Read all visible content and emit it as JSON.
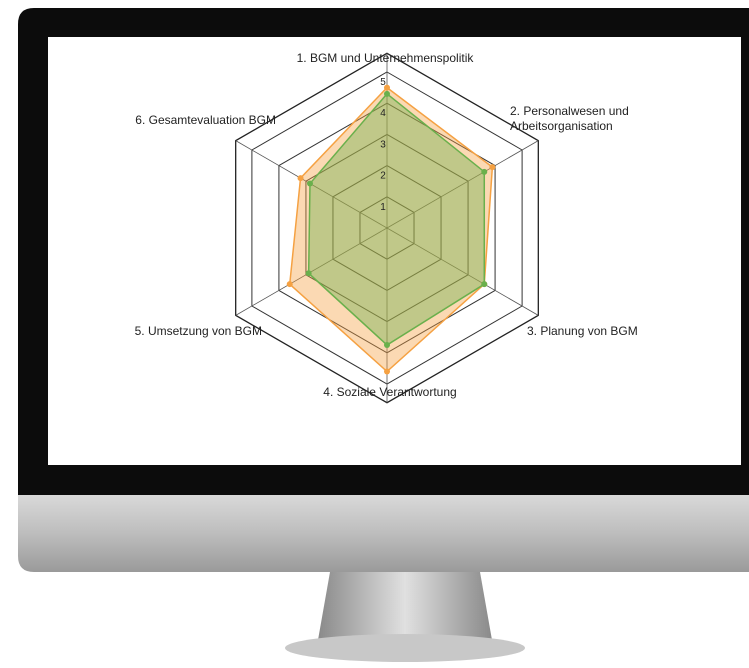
{
  "chart_data": {
    "type": "radar",
    "categories": [
      "1. BGM und Unternehmenspolitik",
      "2. Personalwesen und Arbeitsorganisation",
      "3. Planung von BGM",
      "4. Soziale Verantwortung",
      "5. Umsetzung von BGM",
      "6. Gesamtevaluation BGM"
    ],
    "series": [
      {
        "color": "#f5a142",
        "values": [
          4.5,
          3.9,
          3.6,
          4.6,
          3.6,
          3.2
        ]
      },
      {
        "color": "#6ab04c",
        "values": [
          4.3,
          3.6,
          3.6,
          3.75,
          2.9,
          2.85
        ]
      }
    ],
    "ylim": [
      0,
      5
    ],
    "yticks": [
      1,
      2,
      3,
      4,
      5
    ],
    "grid": true
  }
}
